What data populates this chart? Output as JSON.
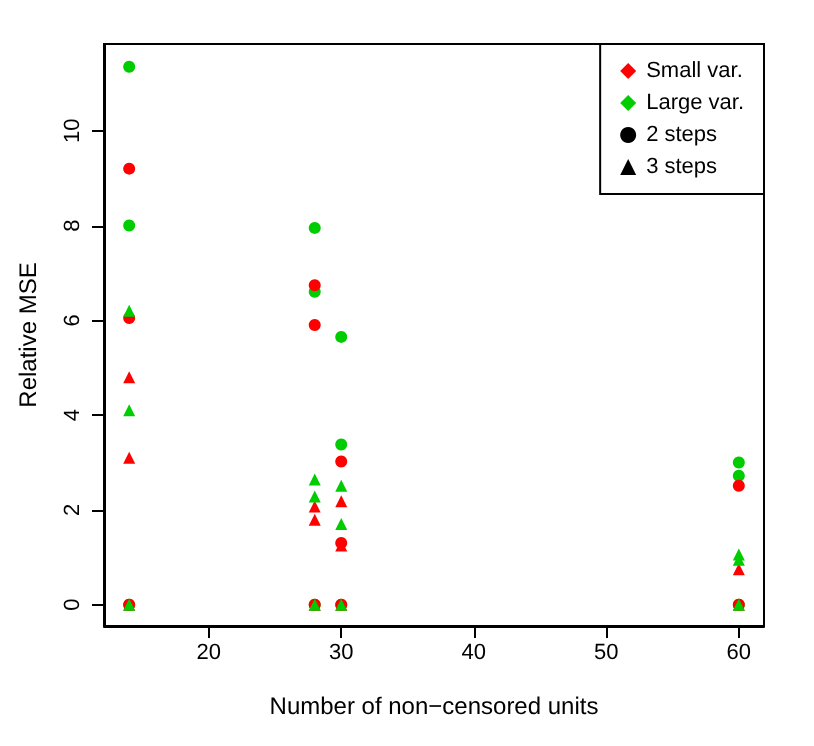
{
  "chart_data": {
    "type": "scatter",
    "xlabel": "Number of non−censored units",
    "ylabel": "Relative MSE",
    "xlim": [
      12.1,
      61.9
    ],
    "xticks": [
      20,
      30,
      40,
      50,
      60
    ],
    "ylim": [
      -0.45,
      11.83
    ],
    "yticks": [
      0,
      2,
      4,
      6,
      8,
      10
    ],
    "grid": false,
    "legend": "top right",
    "series": [
      {
        "color": "#00cd00",
        "marker": "circle",
        "x": [
          14,
          14,
          14,
          28,
          28,
          28,
          30,
          30,
          30,
          60,
          60,
          60
        ],
        "values": [
          11.35,
          8.0,
          0,
          7.95,
          6.6,
          0,
          5.65,
          3.38,
          0,
          3.0,
          2.72,
          0
        ]
      },
      {
        "color": "#ff0000",
        "marker": "circle",
        "x": [
          14,
          14,
          14,
          28,
          28,
          28,
          30,
          30,
          30,
          60,
          60
        ],
        "values": [
          9.2,
          6.05,
          0,
          6.74,
          5.9,
          0,
          3.02,
          1.3,
          0,
          2.51,
          0
        ]
      },
      {
        "color": "#ff0000",
        "marker": "triangle",
        "x": [
          14,
          14,
          14,
          28,
          28,
          28,
          30,
          30,
          30,
          60,
          60
        ],
        "values": [
          4.8,
          3.1,
          0,
          2.07,
          1.79,
          0,
          2.18,
          1.25,
          0,
          0.75,
          0
        ]
      },
      {
        "color": "#00cd00",
        "marker": "triangle",
        "x": [
          14,
          14,
          14,
          28,
          28,
          28,
          30,
          30,
          30,
          60,
          60,
          60
        ],
        "values": [
          6.2,
          4.1,
          0,
          2.64,
          2.28,
          0,
          2.51,
          1.7,
          0,
          1.06,
          0.95,
          0
        ]
      },
      {
        "name": "Small var.",
        "color": "#ff0000",
        "marker": "diamond"
      },
      {
        "name": "Large var.",
        "color": "#00cd00",
        "marker": "diamond"
      },
      {
        "name": "2 steps",
        "color": "#000000",
        "marker": "circle"
      },
      {
        "name": "3 steps",
        "color": "#000000",
        "marker": "triangle"
      }
    ]
  }
}
